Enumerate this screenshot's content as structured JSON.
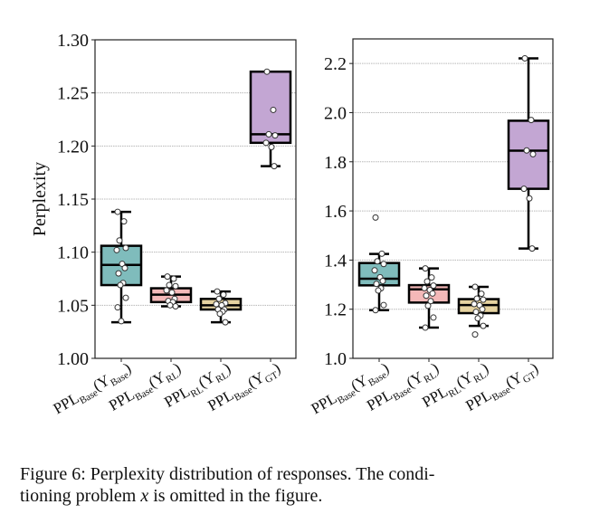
{
  "chart_data": [
    {
      "type": "box",
      "ylabel": "Perplexity",
      "ylim": [
        1.0,
        1.3
      ],
      "yticks": [
        "1.00",
        "1.05",
        "1.10",
        "1.15",
        "1.20",
        "1.25",
        "1.30"
      ],
      "ytick_values": [
        1.0,
        1.05,
        1.1,
        1.15,
        1.2,
        1.25,
        1.3
      ],
      "grid": "horizontal dotted",
      "categories": [
        {
          "ppl": "PPL",
          "ppl_sub": "Base",
          "y": "(Y",
          "y_sub": "Base",
          "close": ")"
        },
        {
          "ppl": "PPL",
          "ppl_sub": "Base",
          "y": "(Y",
          "y_sub": "RL",
          "close": ")"
        },
        {
          "ppl": "PPL",
          "ppl_sub": "RL",
          "y": "(Y",
          "y_sub": "RL",
          "close": ")"
        },
        {
          "ppl": "PPL",
          "ppl_sub": "Base",
          "y": "(Y",
          "y_sub": "GT",
          "close": ")"
        }
      ],
      "boxes": [
        {
          "whislo": 1.034,
          "q1": 1.069,
          "med": 1.088,
          "q3": 1.106,
          "whishi": 1.138,
          "color": "#7fbcbc",
          "points": [
            1.138,
            1.129,
            1.111,
            1.104,
            1.102,
            1.089,
            1.085,
            1.08,
            1.071,
            1.069,
            1.057,
            1.048,
            1.035
          ]
        },
        {
          "whislo": 1.049,
          "q1": 1.053,
          "med": 1.06,
          "q3": 1.066,
          "whishi": 1.077,
          "color": "#f4b8b8",
          "points": [
            1.077,
            1.075,
            1.069,
            1.068,
            1.064,
            1.062,
            1.056,
            1.054,
            1.053,
            1.05,
            1.049
          ]
        },
        {
          "whislo": 1.034,
          "q1": 1.046,
          "med": 1.05,
          "q3": 1.056,
          "whishi": 1.063,
          "color": "#e6d3a0",
          "points": [
            1.063,
            1.06,
            1.056,
            1.052,
            1.051,
            1.05,
            1.046,
            1.046,
            1.044,
            1.042,
            1.034
          ]
        },
        {
          "whislo": 1.181,
          "q1": 1.203,
          "med": 1.211,
          "q3": 1.27,
          "whishi": 1.27,
          "color": "#c3a6d3",
          "points": [
            1.27,
            1.234,
            1.211,
            1.21,
            1.203,
            1.199,
            1.181
          ]
        }
      ]
    },
    {
      "type": "box",
      "ylabel": "",
      "ylim": [
        1.0,
        2.3
      ],
      "yticks": [
        "1.0",
        "1.2",
        "1.4",
        "1.6",
        "1.8",
        "2.0",
        "2.2"
      ],
      "ytick_values": [
        1.0,
        1.2,
        1.4,
        1.6,
        1.8,
        2.0,
        2.2
      ],
      "grid": "horizontal dotted",
      "categories": [
        {
          "ppl": "PPL",
          "ppl_sub": "Base",
          "y": "(Y",
          "y_sub": "Base",
          "close": ")"
        },
        {
          "ppl": "PPL",
          "ppl_sub": "Base",
          "y": "(Y",
          "y_sub": "RL",
          "close": ")"
        },
        {
          "ppl": "PPL",
          "ppl_sub": "RL",
          "y": "(Y",
          "y_sub": "RL",
          "close": ")"
        },
        {
          "ppl": "PPL",
          "ppl_sub": "Base",
          "y": "(Y",
          "y_sub": "GT",
          "close": ")"
        }
      ],
      "boxes": [
        {
          "whislo": 1.196,
          "q1": 1.297,
          "med": 1.324,
          "q3": 1.388,
          "whishi": 1.425,
          "color": "#7fbcbc",
          "points": [
            1.573,
            1.426,
            1.395,
            1.384,
            1.358,
            1.33,
            1.315,
            1.303,
            1.285,
            1.276,
            1.217,
            1.196
          ]
        },
        {
          "whislo": 1.125,
          "q1": 1.227,
          "med": 1.281,
          "q3": 1.298,
          "whishi": 1.366,
          "color": "#f4b8b8",
          "points": [
            1.366,
            1.329,
            1.313,
            1.296,
            1.286,
            1.278,
            1.264,
            1.255,
            1.233,
            1.214,
            1.166,
            1.125
          ]
        },
        {
          "whislo": 1.132,
          "q1": 1.184,
          "med": 1.217,
          "q3": 1.241,
          "whishi": 1.291,
          "color": "#e6d3a0",
          "points": [
            1.291,
            1.263,
            1.243,
            1.239,
            1.221,
            1.216,
            1.2,
            1.189,
            1.174,
            1.163,
            1.132,
            1.097
          ]
        },
        {
          "whislo": 1.447,
          "q1": 1.69,
          "med": 1.845,
          "q3": 1.967,
          "whishi": 2.221,
          "color": "#c3a6d3",
          "points": [
            2.221,
            1.97,
            1.846,
            1.831,
            1.69,
            1.651,
            1.447
          ]
        }
      ]
    }
  ],
  "caption": {
    "line1": "Figure 6: Perplexity distribution of responses. The condi-",
    "line2_pre": "tioning problem ",
    "line2_var": "x",
    "line2_post": " is omitted in the figure."
  }
}
